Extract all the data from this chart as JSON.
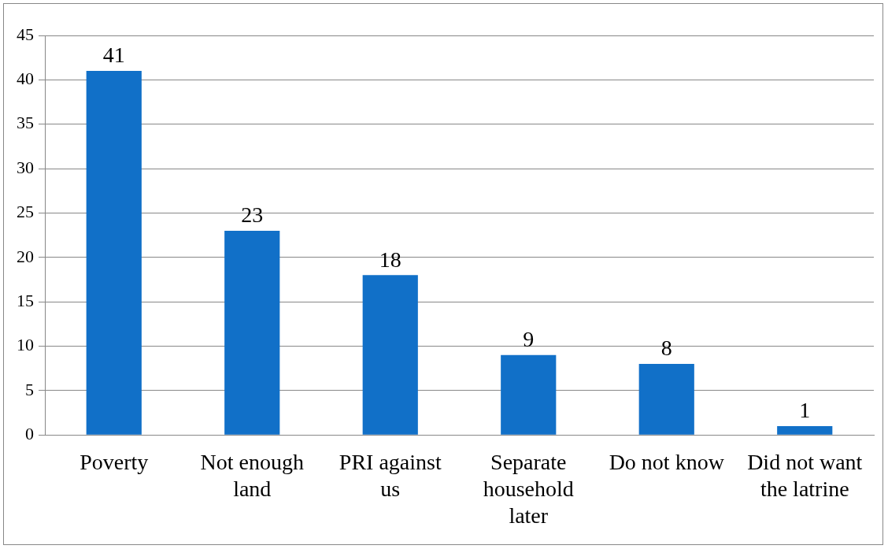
{
  "chart_data": {
    "type": "bar",
    "categories": [
      "Poverty",
      "Not enough land",
      "PRI against us",
      "Separate household later",
      "Do not know",
      "Did not want the latrine"
    ],
    "values": [
      41,
      23,
      18,
      9,
      8,
      1
    ],
    "color": "#1170c8",
    "ylim": [
      0,
      45
    ],
    "yticks": [
      0,
      5,
      10,
      15,
      20,
      25,
      30,
      35,
      40,
      45
    ],
    "grid": "y",
    "data_labels": true,
    "legend": false
  }
}
